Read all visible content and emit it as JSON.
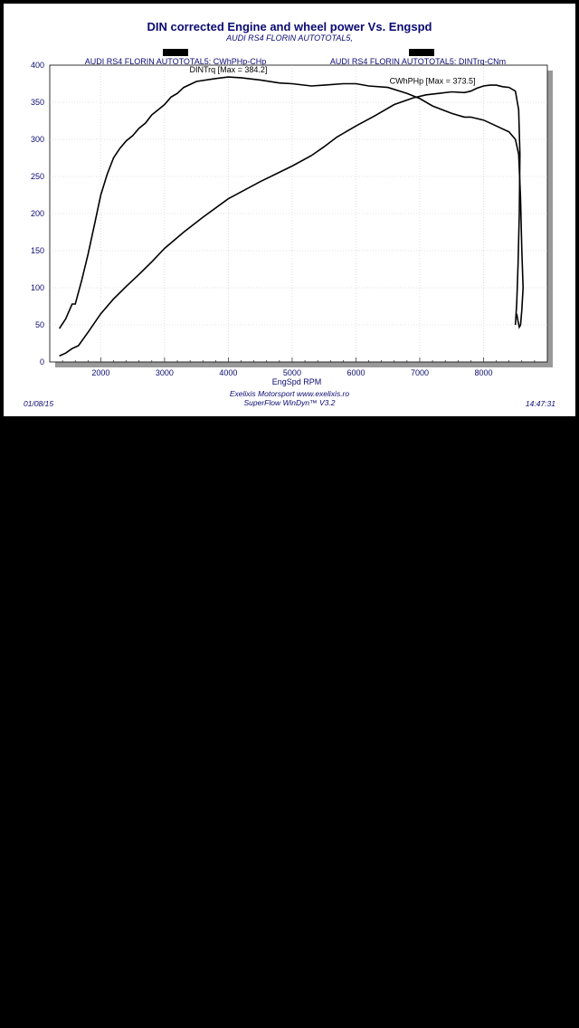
{
  "chart_data": {
    "type": "line",
    "title": "DIN corrected Engine and wheel power Vs. Engspd",
    "subtitle": "AUDI RS4 FLORIN AUTOTOTAL5,",
    "xlabel": "EngSpd RPM",
    "ylabel": "",
    "xlim": [
      1200,
      9000
    ],
    "ylim": [
      0,
      400
    ],
    "xticks": [
      2000,
      3000,
      4000,
      5000,
      6000,
      7000,
      8000
    ],
    "yticks": [
      0,
      50,
      100,
      150,
      200,
      250,
      300,
      350,
      400
    ],
    "grid": true,
    "legend_position": "top",
    "legend": [
      {
        "name": "AUDI RS4 FLORIN AUTOTOTAL5: CWhPHp-CHp",
        "color": "#000000"
      },
      {
        "name": "AUDI RS4 FLORIN AUTOTOTAL5: DINTrq-CNm",
        "color": "#000000"
      }
    ],
    "annotations": [
      {
        "text": "DINTrq [Max = 384.2]",
        "x": 4000,
        "y": 390
      },
      {
        "text": "CWhPHp [Max = 373.5]",
        "x": 7200,
        "y": 375
      }
    ],
    "series": [
      {
        "label": "DINTrq",
        "x": [
          1350,
          1450,
          1550,
          1600,
          1700,
          1800,
          1900,
          2000,
          2100,
          2200,
          2300,
          2400,
          2500,
          2600,
          2700,
          2800,
          2900,
          3000,
          3100,
          3200,
          3300,
          3500,
          3800,
          4000,
          4200,
          4500,
          4800,
          5000,
          5300,
          5500,
          5800,
          6000,
          6200,
          6500,
          6800,
          7000,
          7200,
          7500,
          7700,
          7800,
          8000,
          8200,
          8400,
          8500,
          8550,
          8580,
          8600,
          8620,
          8600,
          8580,
          8560,
          8540,
          8520
        ],
        "y": [
          45,
          58,
          78,
          78,
          110,
          145,
          185,
          225,
          253,
          275,
          288,
          298,
          305,
          315,
          322,
          333,
          340,
          347,
          357,
          362,
          370,
          378,
          382,
          384,
          383,
          380,
          376,
          375,
          372,
          373,
          375,
          375,
          372,
          370,
          362,
          355,
          345,
          335,
          330,
          330,
          326,
          318,
          310,
          300,
          280,
          220,
          150,
          100,
          70,
          50,
          47,
          55,
          65
        ]
      },
      {
        "label": "CWhPHp",
        "x": [
          1350,
          1450,
          1550,
          1650,
          1800,
          2000,
          2200,
          2400,
          2600,
          2800,
          3000,
          3300,
          3600,
          4000,
          4500,
          5000,
          5300,
          5500,
          5700,
          6000,
          6300,
          6600,
          6900,
          7100,
          7300,
          7500,
          7700,
          7800,
          7900,
          8000,
          8100,
          8200,
          8300,
          8400,
          8500,
          8550,
          8570,
          8560,
          8540,
          8520,
          8500
        ],
        "y": [
          8,
          12,
          18,
          22,
          40,
          65,
          85,
          102,
          118,
          135,
          153,
          175,
          195,
          220,
          243,
          264,
          278,
          290,
          303,
          318,
          332,
          347,
          356,
          360,
          362,
          364,
          363,
          365,
          369,
          372,
          373,
          373,
          371,
          370,
          365,
          340,
          280,
          200,
          130,
          80,
          50
        ]
      }
    ]
  },
  "footer": {
    "date": "01/08/15",
    "line1": "Exelixis Motorsport www.exelixis.ro",
    "line2": "SuperFlow WinDyn™ V3.2",
    "time": "14:47:31"
  }
}
